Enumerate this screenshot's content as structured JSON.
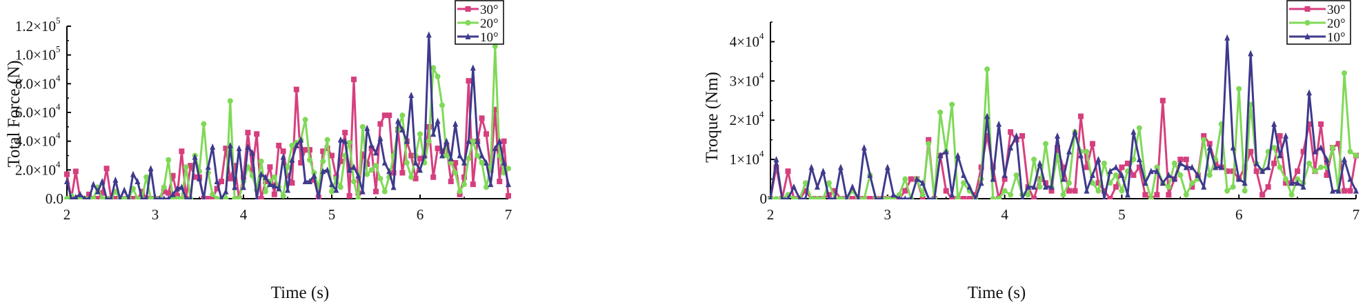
{
  "colors": {
    "s30": "#d63f7e",
    "s20": "#7fd957",
    "s10": "#3e3a8c"
  },
  "chart_data": [
    {
      "type": "line",
      "title": "",
      "xlabel": "Time (s)",
      "ylabel": "Total Force (N)",
      "xlim": [
        2,
        7
      ],
      "ylim": [
        0,
        120000
      ],
      "x_ticks": [
        "2",
        "3",
        "4",
        "5",
        "6",
        "7"
      ],
      "y_ticks": [
        {
          "value": 0,
          "mant": "0.0",
          "exp": ""
        },
        {
          "value": 20000,
          "mant": "2.0×10",
          "exp": "4"
        },
        {
          "value": 40000,
          "mant": "4.0×10",
          "exp": "4"
        },
        {
          "value": 60000,
          "mant": "6.0×10",
          "exp": "4"
        },
        {
          "value": 80000,
          "mant": "8.0×10",
          "exp": "4"
        },
        {
          "value": 100000,
          "mant": "1.0×10",
          "exp": "5"
        },
        {
          "value": 120000,
          "mant": "1.2×10",
          "exp": "5"
        }
      ],
      "legend_position": "top-right",
      "x_sampling": "101 evenly spaced samples from 2 to 7 s",
      "value_scale": 1000,
      "series": [
        {
          "name": "30°",
          "marker": "square",
          "values": [
            17,
            0,
            19,
            0,
            0,
            3,
            0,
            0,
            4,
            21,
            0,
            0,
            0,
            0,
            0,
            0,
            0,
            5,
            0,
            0,
            0,
            0,
            5,
            4,
            16,
            2,
            33,
            0,
            23,
            15,
            15,
            0,
            0,
            0,
            7,
            12,
            35,
            14,
            23,
            0,
            15,
            46,
            20,
            45,
            0,
            12,
            22,
            3,
            37,
            33,
            16,
            11,
            76,
            25,
            34,
            34,
            13,
            1,
            33,
            35,
            30,
            15,
            26,
            46,
            2,
            83,
            4,
            31,
            24,
            35,
            5,
            52,
            58,
            58,
            18,
            48,
            18,
            40,
            30,
            14,
            28,
            30,
            50,
            15,
            35,
            33,
            37,
            12,
            25,
            3,
            15,
            82,
            10,
            40,
            56,
            45,
            20,
            62,
            12,
            40,
            2
          ]
        },
        {
          "name": "20°",
          "marker": "circle",
          "values": [
            0,
            2,
            0,
            0,
            0,
            0,
            0,
            8,
            0,
            0,
            0,
            5,
            0,
            0,
            0,
            7,
            0,
            0,
            15,
            0,
            0,
            0,
            8,
            27,
            0,
            0,
            0,
            22,
            0,
            30,
            19,
            52,
            18,
            3,
            0,
            0,
            0,
            68,
            0,
            0,
            12,
            22,
            16,
            6,
            26,
            5,
            12,
            15,
            8,
            2,
            22,
            37,
            39,
            41,
            55,
            27,
            18,
            8,
            26,
            41,
            5,
            14,
            8,
            30,
            39,
            12,
            0,
            50,
            17,
            20,
            23,
            14,
            5,
            15,
            30,
            48,
            58,
            25,
            15,
            30,
            45,
            25,
            40,
            91,
            85,
            65,
            30,
            25,
            18,
            5,
            10,
            28,
            40,
            30,
            25,
            8,
            22,
            106,
            30,
            18,
            21
          ]
        },
        {
          "name": "10°",
          "marker": "triangle",
          "values": [
            12,
            0,
            1,
            3,
            0,
            0,
            10,
            5,
            12,
            0,
            0,
            13,
            0,
            6,
            0,
            17,
            12,
            0,
            0,
            21,
            0,
            0,
            0,
            0,
            3,
            7,
            8,
            0,
            0,
            29,
            14,
            0,
            22,
            36,
            12,
            0,
            5,
            37,
            8,
            35,
            8,
            36,
            32,
            0,
            17,
            15,
            10,
            9,
            7,
            29,
            6,
            27,
            37,
            41,
            12,
            12,
            16,
            0,
            19,
            20,
            10,
            6,
            41,
            40,
            20,
            22,
            16,
            5,
            49,
            37,
            32,
            42,
            25,
            19,
            8,
            54,
            48,
            40,
            72,
            25,
            20,
            30,
            114,
            45,
            54,
            30,
            40,
            28,
            52,
            30,
            25,
            40,
            91,
            40,
            30,
            25,
            10,
            35,
            40,
            25,
            10
          ]
        }
      ]
    },
    {
      "type": "line",
      "title": "",
      "xlabel": "Time (s)",
      "ylabel": "Troque (Nm)",
      "xlim": [
        2,
        7
      ],
      "ylim": [
        0,
        45000
      ],
      "x_ticks": [
        "2",
        "3",
        "4",
        "5",
        "6",
        "7"
      ],
      "y_ticks": [
        {
          "value": 0,
          "mant": "0",
          "exp": ""
        },
        {
          "value": 10000,
          "mant": "1×10",
          "exp": "4"
        },
        {
          "value": 20000,
          "mant": "2×10",
          "exp": "4"
        },
        {
          "value": 30000,
          "mant": "3×10",
          "exp": "4"
        },
        {
          "value": 40000,
          "mant": "4×10",
          "exp": "4"
        }
      ],
      "legend_position": "top-right",
      "x_sampling": "101 evenly spaced samples from 2 to 7 s",
      "value_scale": 1000,
      "series": [
        {
          "name": "30°",
          "marker": "square",
          "values": [
            0,
            8,
            0,
            7,
            0,
            0,
            2,
            0,
            0,
            0,
            1,
            2,
            0,
            0,
            0,
            0,
            0,
            0,
            0,
            0,
            0,
            0,
            0,
            2,
            5,
            5,
            0,
            15,
            0,
            11,
            2,
            0,
            0,
            0,
            0,
            1,
            8,
            16,
            8,
            0,
            5,
            17,
            15,
            16,
            3,
            0,
            5,
            4,
            2,
            13,
            8,
            2,
            2,
            21,
            8,
            14,
            4,
            2,
            0,
            3,
            8,
            9,
            6,
            8,
            1,
            0,
            1,
            25,
            1,
            5,
            10,
            10,
            3,
            6,
            16,
            14,
            9,
            8,
            7,
            7,
            5,
            8,
            12,
            7,
            1,
            3,
            9,
            16,
            4,
            4,
            7,
            12,
            19,
            7,
            19,
            6,
            13,
            14,
            2,
            2,
            11
          ]
        },
        {
          "name": "20°",
          "marker": "circle",
          "values": [
            0,
            0,
            0,
            1,
            0,
            0,
            4,
            0,
            0,
            0,
            4,
            0,
            0,
            0,
            2,
            0,
            0,
            6,
            0,
            0,
            0,
            0,
            1,
            5,
            0,
            5,
            1,
            14,
            0,
            22,
            12,
            24,
            0,
            4,
            2,
            0,
            5,
            33,
            0,
            0,
            2,
            1,
            6,
            1,
            1,
            10,
            3,
            14,
            3,
            11,
            1,
            4,
            17,
            12,
            12,
            4,
            2,
            9,
            4,
            6,
            2,
            7,
            10,
            18,
            5,
            0,
            8,
            4,
            3,
            9,
            6,
            1,
            4,
            5,
            15,
            6,
            10,
            19,
            2,
            3,
            28,
            2,
            24,
            9,
            7,
            12,
            13,
            8,
            5,
            1,
            5,
            4,
            9,
            7,
            8,
            8,
            13,
            2,
            32,
            12,
            11
          ]
        },
        {
          "name": "10°",
          "marker": "triangle",
          "values": [
            0,
            10,
            0,
            0,
            3,
            0,
            0,
            8,
            3,
            7,
            0,
            0,
            8,
            0,
            3,
            0,
            13,
            6,
            0,
            0,
            8,
            1,
            0,
            0,
            0,
            5,
            4,
            0,
            0,
            11,
            12,
            1,
            11,
            6,
            3,
            0,
            4,
            21,
            5,
            19,
            6,
            13,
            16,
            0,
            3,
            3,
            9,
            3,
            3,
            16,
            5,
            12,
            17,
            11,
            2,
            6,
            10,
            0,
            7,
            8,
            6,
            1,
            17,
            10,
            4,
            7,
            7,
            4,
            6,
            5,
            9,
            8,
            8,
            6,
            3,
            13,
            8,
            8,
            41,
            13,
            5,
            4,
            37,
            9,
            7,
            8,
            19,
            11,
            16,
            4,
            4,
            3,
            27,
            12,
            13,
            10,
            2,
            2,
            10,
            5,
            2
          ]
        }
      ]
    }
  ]
}
